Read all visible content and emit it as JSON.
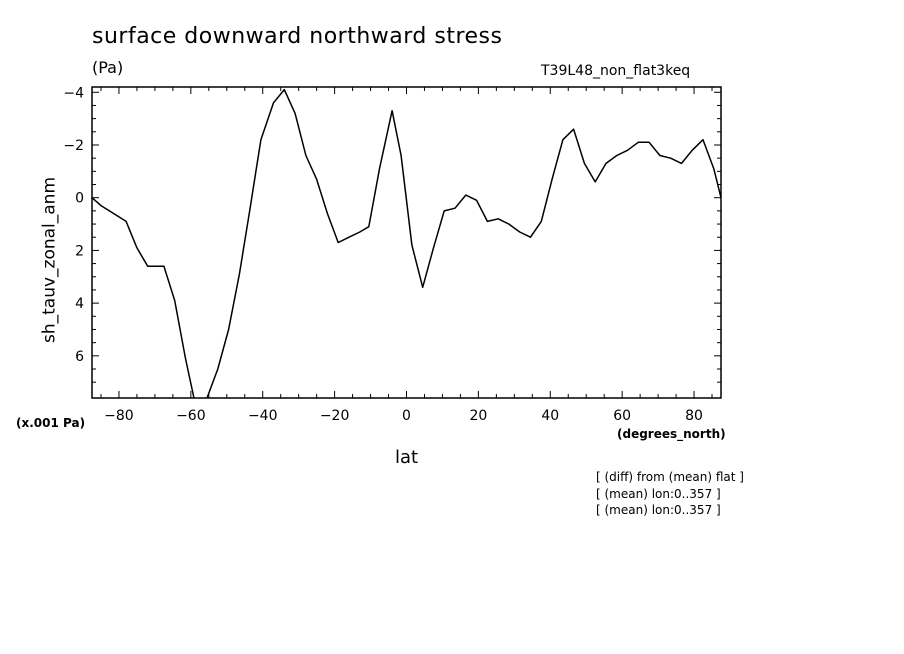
{
  "header": {
    "title": "surface downward northward stress",
    "units": "(Pa)",
    "run": "T39L48_non_flat3keq"
  },
  "axes": {
    "ylabel": "sh_tauv_zonal_anm",
    "scale_note": "(x.001 Pa)",
    "xlabel": "lat",
    "xunits": "(degrees_north)"
  },
  "notes": [
    "[ (diff) from (mean) flat ]",
    "[ (mean) lon:0..357 ]",
    "[ (mean) lon:0..357 ]"
  ],
  "chart_data": {
    "type": "line",
    "title": "surface downward northward stress",
    "xlabel": "lat",
    "ylabel": "sh_tauv_zonal_anm",
    "xlim": [
      -87.5,
      87.5
    ],
    "ylim": [
      7.6,
      -4.2
    ],
    "y_inverted": true,
    "x_ticks": [
      -80,
      -60,
      -40,
      -20,
      0,
      20,
      40,
      60,
      80
    ],
    "x_tick_labels": [
      "−80",
      "−60",
      "−40",
      "−20",
      "0",
      "20",
      "40",
      "60",
      "80"
    ],
    "y_ticks": [
      -4,
      -2,
      0,
      2,
      4,
      6
    ],
    "y_tick_labels": [
      "−4",
      "−2",
      "0",
      "2",
      "4",
      "6"
    ],
    "grid": false,
    "series": [
      {
        "x": [
          -87.5,
          -85,
          -81.5,
          -78,
          -75,
          -72,
          -67.5,
          -64.5,
          -61.5,
          -58.5,
          -55.5,
          -52.5,
          -49.5,
          -46.5,
          -43.5,
          -40.5,
          -37,
          -34,
          -31,
          -28,
          -25,
          -22,
          -19,
          -16,
          -13,
          -10.5,
          -7.5,
          -4,
          -1.5,
          1.5,
          4.5,
          7.5,
          10.5,
          13.5,
          16.5,
          19.5,
          22.5,
          25.5,
          28.5,
          31.5,
          34.5,
          37.5,
          40.5,
          43.5,
          46.5,
          49.5,
          52.5,
          55.5,
          58.5,
          61.5,
          64.5,
          67.5,
          70.5,
          73.5,
          76.5,
          79.5,
          82.5,
          85.5,
          87.5
        ],
        "values": [
          0.0,
          0.3,
          0.6,
          0.9,
          1.9,
          2.6,
          2.6,
          3.9,
          6.1,
          8.0,
          7.6,
          6.5,
          5.0,
          2.9,
          0.4,
          -2.2,
          -3.6,
          -4.1,
          -3.2,
          -1.6,
          -0.7,
          0.6,
          1.7,
          1.5,
          1.3,
          1.1,
          -1.1,
          -3.3,
          -1.6,
          1.8,
          3.4,
          1.9,
          0.5,
          0.4,
          -0.1,
          0.1,
          0.9,
          0.8,
          1.0,
          1.3,
          1.5,
          0.9,
          -0.7,
          -2.2,
          -2.6,
          -1.3,
          -0.6,
          -1.3,
          -1.6,
          -1.8,
          -2.1,
          -2.1,
          -1.6,
          -1.5,
          -1.3,
          -1.8,
          -2.2,
          -1.1,
          0.0
        ]
      }
    ]
  }
}
